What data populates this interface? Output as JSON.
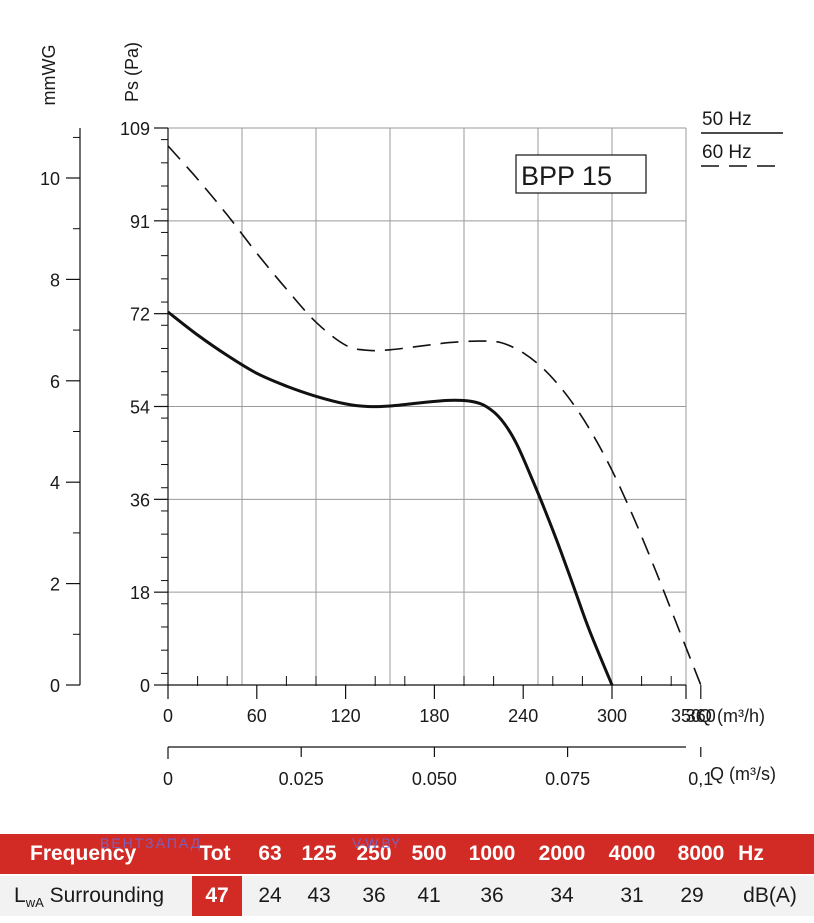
{
  "chart_data": {
    "type": "line",
    "model_label": "BPP 15",
    "y_left_label": "mmWG",
    "y_label": "Ps (Pa)",
    "x_label": "Q (m³/h)",
    "x2_label": "Q (m³/s)",
    "xlim": [
      0,
      350
    ],
    "ylim": [
      0,
      109
    ],
    "mmwg_ticks": [
      "0",
      "2",
      "4",
      "6",
      "8",
      "10"
    ],
    "y_ticks": [
      "0",
      "18",
      "36",
      "54",
      "72",
      "91",
      "109"
    ],
    "x_ticks": [
      "0",
      "60",
      "120",
      "180",
      "240",
      "300",
      "360",
      "350"
    ],
    "x2_ticks": [
      "0",
      "0.025",
      "0.050",
      "0.075",
      "0,1"
    ],
    "legend": [
      "50 Hz",
      "60 Hz"
    ],
    "series": [
      {
        "name": "50 Hz",
        "style": "solid",
        "x": [
          0,
          20,
          40,
          60,
          80,
          100,
          120,
          135,
          150,
          170,
          190,
          205,
          215,
          225,
          235,
          245,
          255,
          265,
          275,
          285,
          300
        ],
        "y": [
          73,
          68.5,
          64.5,
          61,
          58.5,
          56.5,
          55,
          54.5,
          54.6,
          55.2,
          55.7,
          55.5,
          54.5,
          52,
          47.5,
          41,
          34,
          26.5,
          18.5,
          10.5,
          0
        ]
      },
      {
        "name": "60 Hz",
        "style": "dashed",
        "x": [
          0,
          20,
          40,
          60,
          80,
          100,
          120,
          135,
          150,
          170,
          190,
          210,
          225,
          240,
          255,
          270,
          285,
          300,
          315,
          330,
          345,
          360
        ],
        "y": [
          105.5,
          99,
          92,
          84.5,
          77.5,
          71,
          66.5,
          65.5,
          65.6,
          66.3,
          67,
          67.3,
          67,
          65,
          61.5,
          56.5,
          50,
          42,
          32.5,
          22,
          11,
          0
        ]
      }
    ]
  },
  "sound_table": {
    "frequency_label": "Frequency",
    "frequency_headers": [
      "Tot",
      "63",
      "125",
      "250",
      "500",
      "1000",
      "2000",
      "4000",
      "8000"
    ],
    "frequency_unit": "Hz",
    "lwa_label_main": "L",
    "lwa_label_sub": "wA",
    "lwa_label_rest": " Surrounding",
    "lwa_total": "47",
    "lwa_values": [
      "24",
      "43",
      "36",
      "41",
      "36",
      "34",
      "31",
      "29"
    ],
    "lwa_unit": "dB(A)",
    "watermark_a": "ВЕНТЗАПАД",
    "watermark_b": "V-W.BY"
  },
  "colors": {
    "header_red": "#d22b26",
    "row_grey": "#f2f2f2",
    "curve": "#111111",
    "grid": "#9a9a9a"
  }
}
